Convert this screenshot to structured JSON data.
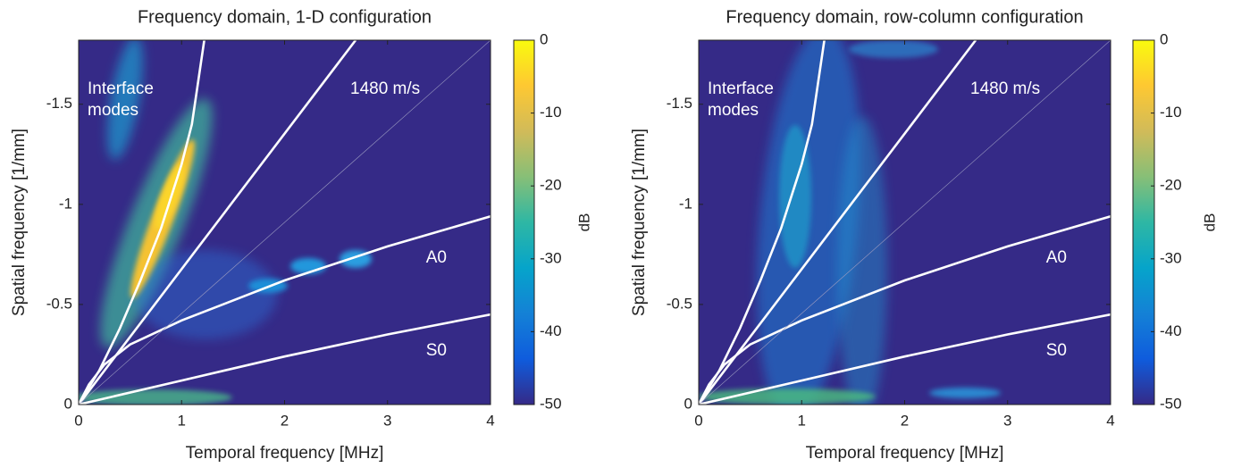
{
  "chart_data": [
    {
      "type": "line",
      "title": "Frequency domain, 1-D configuration",
      "xlabel": "Temporal frequency [MHz]",
      "ylabel": "Spatial frequency [1/mm]",
      "xlim": [
        0,
        4
      ],
      "ylim": [
        0,
        -1.82
      ],
      "xticks": [
        0,
        1,
        2,
        3,
        4
      ],
      "yticks": [
        0,
        -0.5,
        -1,
        -1.5
      ],
      "series": [
        {
          "color": "#ffffff",
          "x": [
            0,
            0.2,
            0.4,
            0.6,
            0.8,
            1.0,
            1.1,
            1.22
          ],
          "values": [
            0,
            -0.17,
            -0.38,
            -0.62,
            -0.88,
            -1.2,
            -1.4,
            -1.82
          ]
        },
        {
          "color": "#ffffff",
          "x": [
            0,
            2.69
          ],
          "values": [
            0,
            -1.82
          ]
        },
        {
          "color": "#ffffff",
          "x": [
            0,
            0.1,
            0.25,
            0.5,
            1,
            2,
            3,
            4
          ],
          "values": [
            0,
            -0.1,
            -0.2,
            -0.3,
            -0.42,
            -0.62,
            -0.79,
            -0.94
          ]
        },
        {
          "color": "#ffffff",
          "x": [
            0,
            1,
            2,
            3,
            4
          ],
          "values": [
            0,
            -0.12,
            -0.24,
            -0.35,
            -0.45
          ]
        },
        {
          "color": "#9a9ac0",
          "x": [
            0,
            4
          ],
          "values": [
            0,
            -1.82
          ]
        }
      ],
      "annotations": [
        "Interface",
        "modes",
        "1480 m/s",
        "A0",
        "S0"
      ],
      "colorbar": {
        "label": "dB",
        "lim": [
          -50,
          0
        ],
        "ticks": [
          0,
          -10,
          -20,
          -30,
          -40,
          -50
        ]
      }
    },
    {
      "type": "line",
      "title": "Frequency domain, row-column configuration",
      "xlabel": "Temporal frequency [MHz]",
      "ylabel": "Spatial frequency [1/mm]",
      "xlim": [
        0,
        4
      ],
      "ylim": [
        0,
        -1.82
      ],
      "xticks": [
        0,
        1,
        2,
        3,
        4
      ],
      "yticks": [
        0,
        -0.5,
        -1,
        -1.5
      ],
      "series": [
        {
          "color": "#ffffff",
          "x": [
            0,
            0.2,
            0.4,
            0.6,
            0.8,
            1.0,
            1.1,
            1.22
          ],
          "values": [
            0,
            -0.17,
            -0.38,
            -0.62,
            -0.88,
            -1.2,
            -1.4,
            -1.82
          ]
        },
        {
          "color": "#ffffff",
          "x": [
            0,
            2.69
          ],
          "values": [
            0,
            -1.82
          ]
        },
        {
          "color": "#ffffff",
          "x": [
            0,
            0.1,
            0.25,
            0.5,
            1,
            2,
            3,
            4
          ],
          "values": [
            0,
            -0.1,
            -0.2,
            -0.3,
            -0.42,
            -0.62,
            -0.79,
            -0.94
          ]
        },
        {
          "color": "#ffffff",
          "x": [
            0,
            1,
            2,
            3,
            4
          ],
          "values": [
            0,
            -0.12,
            -0.24,
            -0.35,
            -0.45
          ]
        },
        {
          "color": "#9a9ac0",
          "x": [
            0,
            4
          ],
          "values": [
            0,
            -1.82
          ]
        }
      ],
      "annotations": [
        "Interface",
        "modes",
        "1480 m/s",
        "A0",
        "S0"
      ],
      "colorbar": {
        "label": "dB",
        "lim": [
          -50,
          0
        ],
        "ticks": [
          0,
          -10,
          -20,
          -30,
          -40,
          -50
        ]
      }
    }
  ]
}
